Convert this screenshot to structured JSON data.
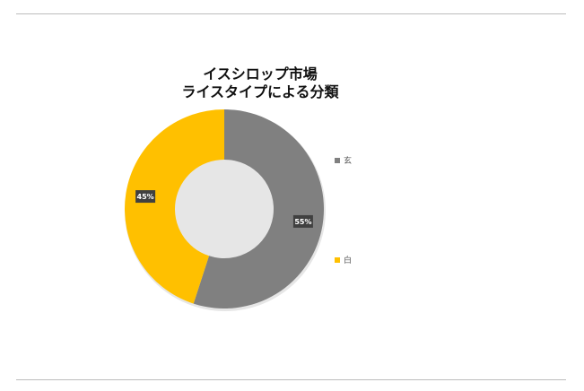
{
  "chart_data": {
    "type": "donut",
    "title_lines": [
      "イスシロップ市場",
      "ライスタイプによる分類"
    ],
    "categories": [
      "玄",
      "白"
    ],
    "values": [
      55,
      45
    ],
    "colors": [
      "#808080",
      "#ffc000"
    ],
    "data_labels": [
      "55%",
      "45%"
    ],
    "legend_position": "right"
  }
}
